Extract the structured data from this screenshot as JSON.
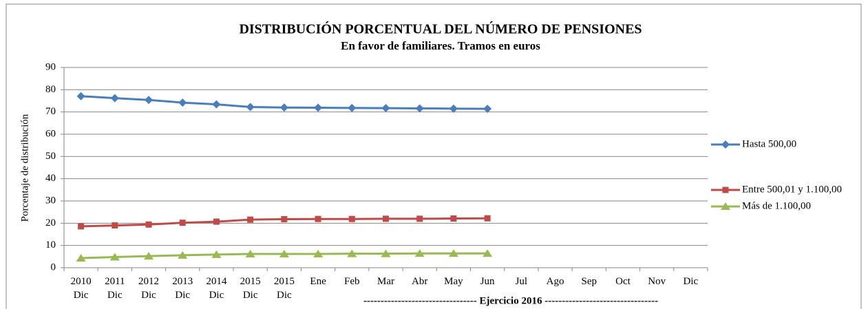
{
  "chart_data": {
    "type": "line",
    "title": "DISTRIBUCIÓN PORCENTUAL DEL NÚMERO DE PENSIONES",
    "subtitle": "En favor de familiares. Tramos en euros",
    "y_label": "Porcentaje de distribución",
    "annotation": "--------------------------------- Ejercicio 2016 ---------------------------------",
    "categories": [
      "2010\nDic",
      "2011\nDic",
      "2012\nDic",
      "2013\nDic",
      "2014\nDic",
      "2015\nDic",
      "2015\nDic",
      "Ene",
      "Feb",
      "Mar",
      "Abr",
      "May",
      "Jun",
      "Jul",
      "Ago",
      "Sep",
      "Oct",
      "Nov",
      "Dic"
    ],
    "series": [
      {
        "name": "Hasta 500,00",
        "color": "#4a7ebb",
        "marker": "diamond",
        "values": [
          77.1,
          76.2,
          75.4,
          74.2,
          73.4,
          72.2,
          72.0,
          71.9,
          71.8,
          71.7,
          71.6,
          71.5,
          71.4,
          null,
          null,
          null,
          null,
          null,
          null
        ]
      },
      {
        "name": "Entre 500,01 y 1.100,00",
        "color": "#be4b48",
        "marker": "square",
        "values": [
          18.6,
          19.0,
          19.4,
          20.2,
          20.7,
          21.6,
          21.8,
          21.9,
          21.9,
          22.0,
          22.0,
          22.1,
          22.2,
          null,
          null,
          null,
          null,
          null,
          null
        ]
      },
      {
        "name": "Más de 1.100,00",
        "color": "#98b954",
        "marker": "triangle",
        "values": [
          4.3,
          4.8,
          5.2,
          5.6,
          5.9,
          6.2,
          6.2,
          6.2,
          6.3,
          6.3,
          6.4,
          6.4,
          6.4,
          null,
          null,
          null,
          null,
          null,
          null
        ]
      }
    ],
    "ylim": [
      0,
      90
    ],
    "yticks": [
      0,
      10,
      20,
      30,
      40,
      50,
      60,
      70,
      80,
      90
    ],
    "grid": true,
    "legend": "right"
  }
}
